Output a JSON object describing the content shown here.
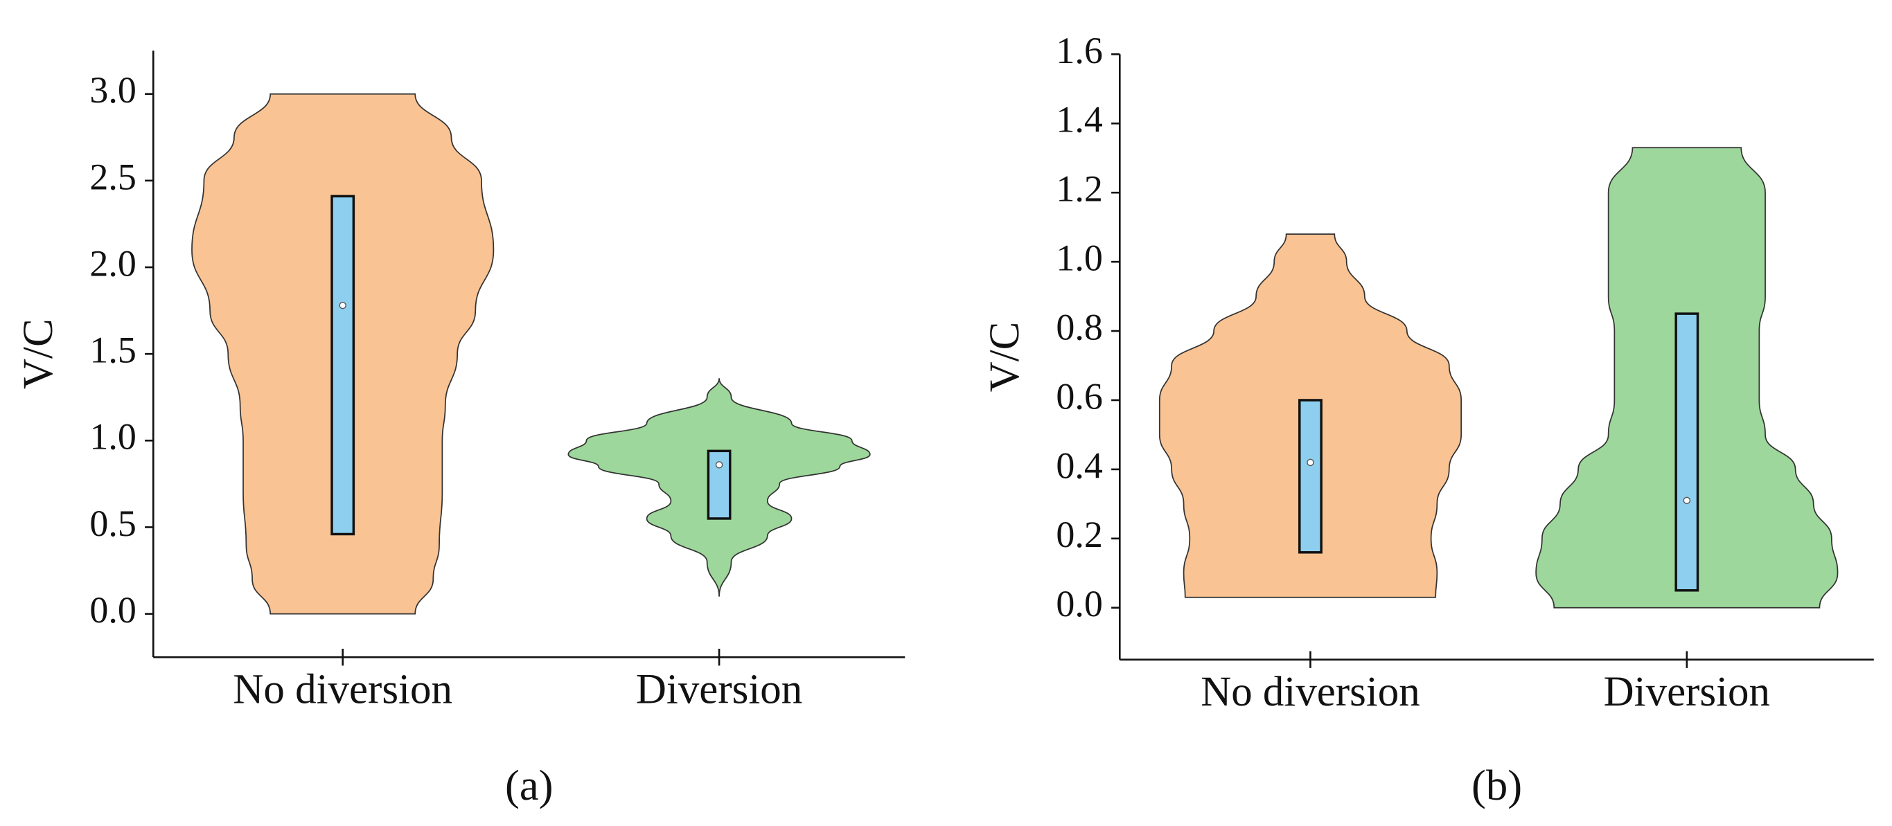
{
  "chart_data": [
    {
      "type": "violin",
      "label": "(a)",
      "y_label": "V/C",
      "categories": [
        "No diversion",
        "Diversion"
      ],
      "ylim": [
        -0.25,
        3.25
      ],
      "yticks": [
        {
          "value": 0,
          "label": "0.0"
        },
        0.5,
        {
          "value": 1,
          "label": "1.0"
        },
        1.5,
        {
          "value": 2,
          "label": "2.0"
        },
        2.5,
        {
          "value": 3,
          "label": "3.0"
        }
      ],
      "series": [
        {
          "color": "#f9c393",
          "box_color": "#8ecfef",
          "min": 0,
          "max": 3.0,
          "q1": 0.46,
          "median": 1.78,
          "q3": 2.41,
          "density_y": [
            0,
            0.2,
            0.4,
            0.7,
            1.0,
            1.2,
            1.5,
            1.75,
            2.1,
            2.5,
            2.75,
            3.0
          ],
          "density_width": [
            0.48,
            0.6,
            0.64,
            0.66,
            0.66,
            0.68,
            0.76,
            0.88,
            1.0,
            0.92,
            0.72,
            0.48
          ]
        },
        {
          "color": "#9dd79b",
          "box_color": "#8ecfef",
          "min": 0.1,
          "max": 1.36,
          "q1": 0.55,
          "median": 0.86,
          "q3": 0.94,
          "density_y": [
            0.1,
            0.3,
            0.45,
            0.55,
            0.65,
            0.75,
            0.85,
            0.92,
            1.0,
            1.1,
            1.25,
            1.36
          ],
          "density_width": [
            0,
            0.08,
            0.32,
            0.48,
            0.32,
            0.4,
            0.8,
            1.0,
            0.88,
            0.48,
            0.08,
            0
          ]
        }
      ]
    },
    {
      "type": "violin",
      "label": "(b)",
      "y_label": "V/C",
      "categories": [
        "No diversion",
        "Diversion"
      ],
      "ylim": [
        -0.15,
        1.6
      ],
      "yticks": [
        {
          "value": 0,
          "label": "0.0"
        },
        0.2,
        0.4,
        0.6,
        0.8,
        {
          "value": 1,
          "label": "1.0"
        },
        1.2,
        1.4,
        1.6
      ],
      "series": [
        {
          "color": "#f9c393",
          "box_color": "#8ecfef",
          "min": 0.03,
          "max": 1.08,
          "q1": 0.16,
          "median": 0.42,
          "q3": 0.6,
          "density_y": [
            0.03,
            0.1,
            0.2,
            0.3,
            0.4,
            0.5,
            0.6,
            0.7,
            0.8,
            0.9,
            1.0,
            1.08
          ],
          "density_width": [
            0.83,
            0.84,
            0.8,
            0.84,
            0.92,
            1.0,
            1.0,
            0.92,
            0.64,
            0.36,
            0.24,
            0.16
          ]
        },
        {
          "color": "#9dd79b",
          "box_color": "#8ecfef",
          "min": 0,
          "max": 1.33,
          "q1": 0.05,
          "median": 0.31,
          "q3": 0.85,
          "density_y": [
            0,
            0.1,
            0.2,
            0.3,
            0.4,
            0.5,
            0.6,
            0.8,
            0.9,
            1.0,
            1.2,
            1.33
          ],
          "density_width": [
            0.88,
            1.0,
            0.96,
            0.84,
            0.72,
            0.52,
            0.48,
            0.48,
            0.52,
            0.52,
            0.52,
            0.36
          ]
        }
      ]
    }
  ]
}
